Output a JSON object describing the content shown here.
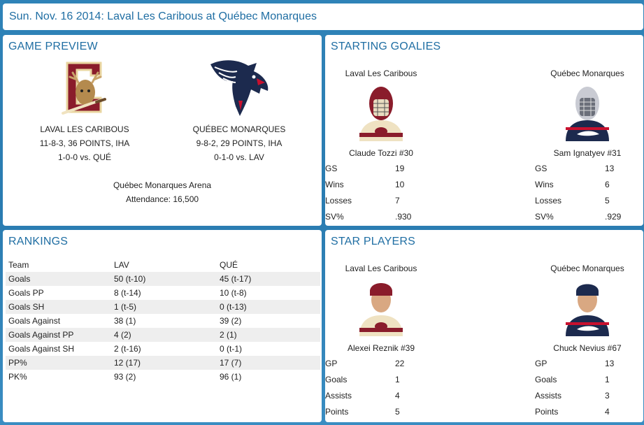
{
  "header": {
    "title": "Sun. Nov. 16 2014: Laval Les Caribous at Québec Monarques"
  },
  "preview": {
    "heading": "GAME PREVIEW",
    "home": {
      "name": "LAVAL LES CARIBOUS",
      "record": "11-8-3, 36 POINTS, IHA",
      "h2h": "1-0-0 vs. QUÉ"
    },
    "away": {
      "name": "QUÉBEC MONARQUES",
      "record": "9-8-2, 29 POINTS, IHA",
      "h2h": "0-1-0 vs. LAV"
    },
    "arena": "Québec Monarques Arena",
    "attendance": "Attendance: 16,500"
  },
  "goalies": {
    "heading": "STARTING GOALIES",
    "left": {
      "team": "Laval Les Caribous",
      "player": "Claude Tozzi #30",
      "stats": [
        [
          "GS",
          "19"
        ],
        [
          "Wins",
          "10"
        ],
        [
          "Losses",
          "7"
        ],
        [
          "SV%",
          ".930"
        ]
      ]
    },
    "right": {
      "team": "Québec Monarques",
      "player": "Sam Ignatyev #31",
      "stats": [
        [
          "GS",
          "13"
        ],
        [
          "Wins",
          "6"
        ],
        [
          "Losses",
          "5"
        ],
        [
          "SV%",
          ".929"
        ]
      ]
    }
  },
  "rankings": {
    "heading": "RANKINGS",
    "columns": [
      "Team",
      "LAV",
      "QUÉ"
    ],
    "rows": [
      [
        "Goals",
        "50 (t-10)",
        "45 (t-17)"
      ],
      [
        "Goals PP",
        "8 (t-14)",
        "10 (t-8)"
      ],
      [
        "Goals SH",
        "1 (t-5)",
        "0 (t-13)"
      ],
      [
        "Goals Against",
        "38 (1)",
        "39 (2)"
      ],
      [
        "Goals Against PP",
        "4 (2)",
        "2 (1)"
      ],
      [
        "Goals Against SH",
        "2 (t-16)",
        "0 (t-1)"
      ],
      [
        "PP%",
        "12 (17)",
        "17 (7)"
      ],
      [
        "PK%",
        "93 (2)",
        "96 (1)"
      ]
    ]
  },
  "stars": {
    "heading": "STAR PLAYERS",
    "left": {
      "team": "Laval Les Caribous",
      "player": "Alexei Reznik #39",
      "stats": [
        [
          "GP",
          "22"
        ],
        [
          "Goals",
          "1"
        ],
        [
          "Assists",
          "4"
        ],
        [
          "Points",
          "5"
        ]
      ]
    },
    "right": {
      "team": "Québec Monarques",
      "player": "Chuck Nevius #67",
      "stats": [
        [
          "GP",
          "13"
        ],
        [
          "Goals",
          "1"
        ],
        [
          "Assists",
          "3"
        ],
        [
          "Points",
          "4"
        ]
      ]
    }
  },
  "colors": {
    "accent": "#1f6ea3",
    "laval": "#8a1c2b",
    "quebec": "#1c2a4e"
  },
  "icons": {
    "laval_logo": "caribou-logo",
    "quebec_logo": "monarque-dragon-logo"
  }
}
